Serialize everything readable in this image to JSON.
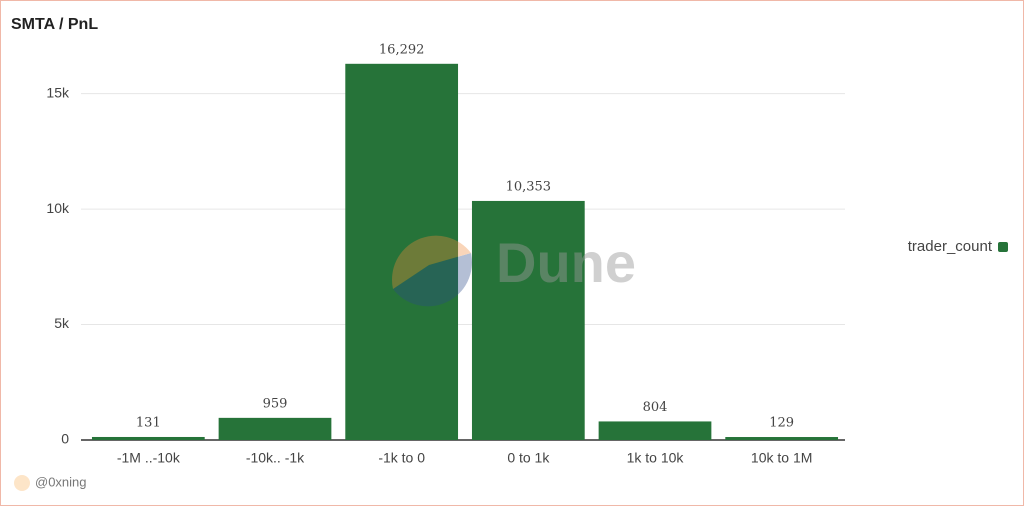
{
  "chart_data": {
    "type": "bar",
    "title": "SMTA / PnL",
    "categories": [
      "-1M ..-10k",
      "-10k.. -1k",
      "-1k to 0",
      "0 to 1k",
      "1k to 10k",
      "10k to 1M"
    ],
    "series": [
      {
        "name": "trader_count",
        "color": "#267339",
        "values": [
          131,
          959,
          16292,
          10353,
          804,
          129
        ],
        "value_labels": [
          "131",
          "959",
          "16,292",
          "10,353",
          "804",
          "129"
        ]
      }
    ],
    "ylim": [
      0,
      16500
    ],
    "yticks": [
      0,
      {
        "value": 5000,
        "label": "5k"
      },
      {
        "value": 10000,
        "label": "10k"
      },
      {
        "value": 15000,
        "label": "15k"
      }
    ],
    "grid": true,
    "legend": "right",
    "watermark": "Dune",
    "credit": "@0xning"
  }
}
